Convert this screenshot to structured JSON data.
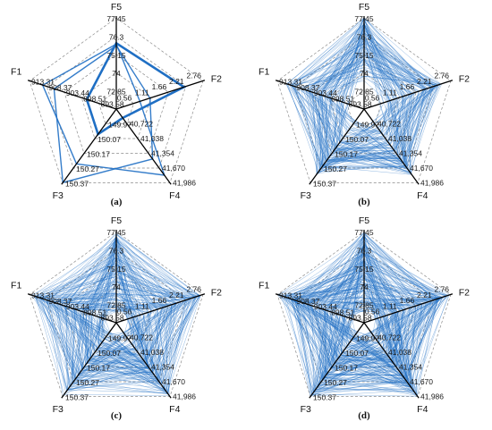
{
  "chart_data": {
    "type": "radar",
    "axes": [
      {
        "name": "F5",
        "ticks": [
          "77.45",
          "76.3",
          "75.15",
          "74",
          "72.85"
        ]
      },
      {
        "name": "F2",
        "ticks": [
          "2.76",
          "2.21",
          "1.66",
          "1.11",
          "0.56"
        ]
      },
      {
        "name": "F4",
        "ticks": [
          "41,986",
          "41,670",
          "41,354",
          "41,038",
          "40,722"
        ]
      },
      {
        "name": "F3",
        "ticks": [
          "150.37",
          "150.27",
          "150.17",
          "150.07",
          "149.97"
        ]
      },
      {
        "name": "F1",
        "ticks": [
          "913.31",
          "908.37",
          "903.44",
          "898.51",
          "893.58"
        ]
      }
    ],
    "ranges": [
      [
        72.85,
        77.45
      ],
      [
        0.56,
        2.76
      ],
      [
        40722,
        41986
      ],
      [
        149.97,
        150.37
      ],
      [
        893.58,
        913.31
      ]
    ],
    "grid": "dashed pentagon",
    "line_color": "#1f6fc4",
    "panels": [
      {
        "label": "(a)",
        "highlight": {
          "values": [
            76.0,
            2.21,
            40722,
            150.07,
            898.51
          ]
        },
        "lines": 2
      },
      {
        "label": "(b)",
        "lines": 110
      },
      {
        "label": "(c)",
        "lines": 140
      },
      {
        "label": "(d)",
        "lines": 170
      }
    ]
  }
}
